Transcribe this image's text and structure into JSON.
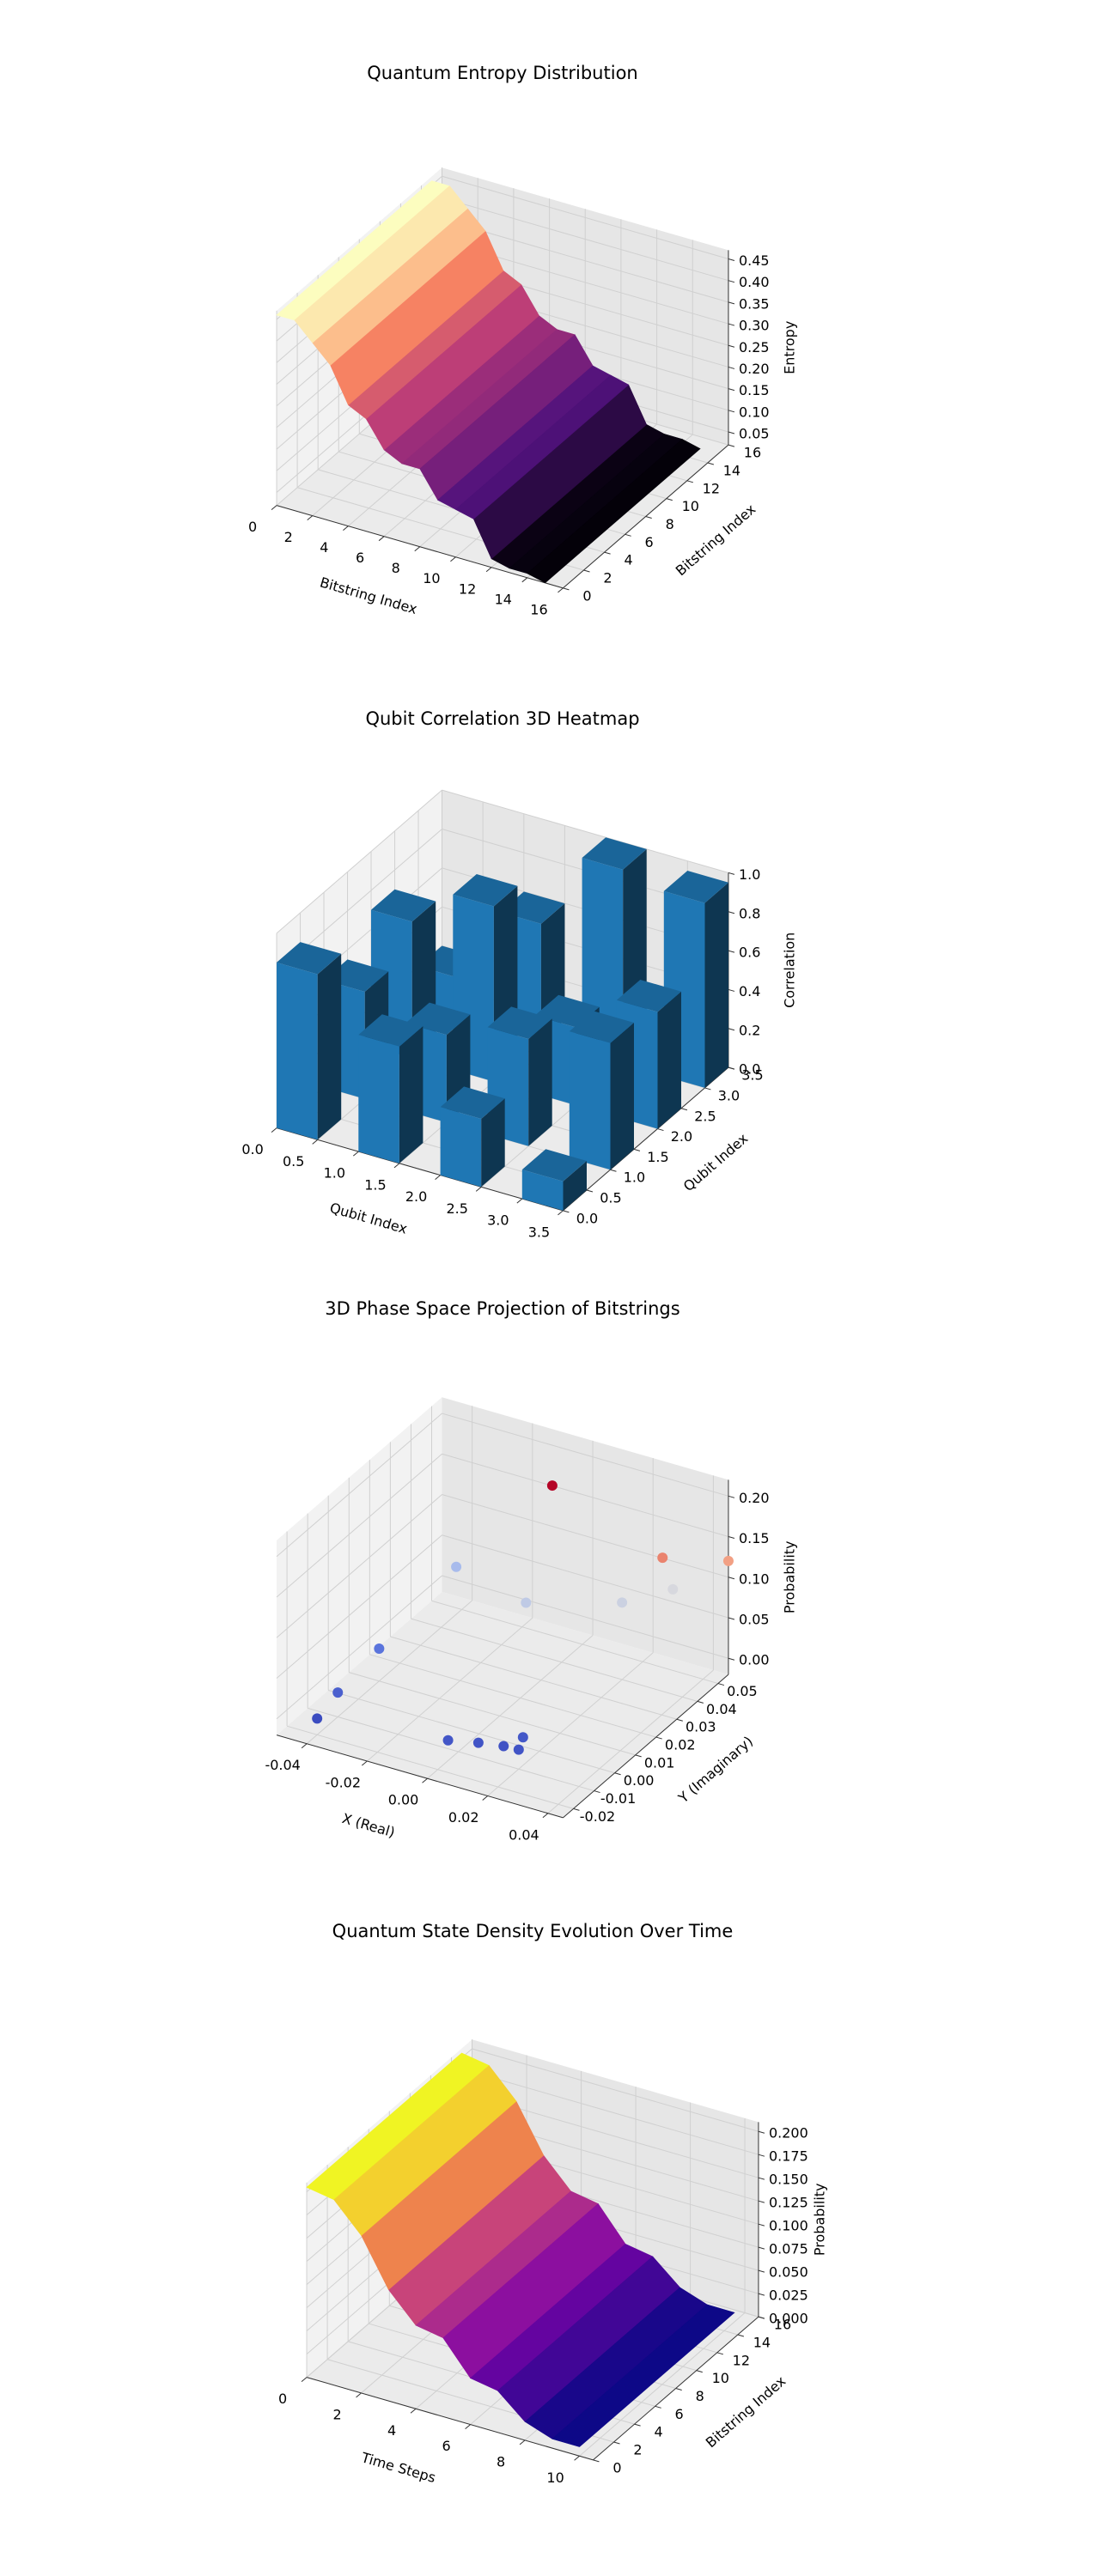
{
  "chart_data": [
    {
      "type": "surface",
      "title": "Quantum Entropy Distribution",
      "xlabel": "Bitstring Index",
      "ylabel": "Bitstring Index",
      "zlabel": "Entropy",
      "colormap": "magma",
      "x": [
        0,
        1,
        2,
        3,
        4,
        5,
        6,
        7,
        8,
        9,
        10,
        11,
        12,
        13,
        14,
        15
      ],
      "y": [
        0,
        15
      ],
      "values": [
        [
          0.46,
          0.46,
          0.42,
          0.38,
          0.3,
          0.28,
          0.22,
          0.2,
          0.2,
          0.14,
          0.13,
          0.12,
          0.04,
          0.03,
          0.03,
          0.02
        ],
        [
          0.46,
          0.46,
          0.42,
          0.38,
          0.3,
          0.28,
          0.22,
          0.2,
          0.2,
          0.14,
          0.13,
          0.12,
          0.04,
          0.03,
          0.03,
          0.02
        ]
      ],
      "xlim": [
        0,
        16
      ],
      "ylim": [
        0,
        16
      ],
      "zlim": [
        0.02,
        0.47
      ],
      "xticks": [
        0,
        2,
        4,
        6,
        8,
        10,
        12,
        14,
        16
      ],
      "yticks": [
        0,
        2,
        4,
        6,
        8,
        10,
        12,
        14,
        16
      ],
      "zticks": [
        0.05,
        {
          "value": 0.1,
          "label": "0.10"
        },
        0.15,
        {
          "value": 0.2,
          "label": "0.20"
        },
        0.25,
        {
          "value": 0.3,
          "label": "0.30"
        },
        0.35,
        {
          "value": 0.4,
          "label": "0.40"
        },
        0.45
      ]
    },
    {
      "type": "bar3d",
      "title": "Qubit Correlation 3D Heatmap",
      "xlabel": "Qubit Index",
      "ylabel": "Qubit Index",
      "zlabel": "Correlation",
      "color": "#1f77b4",
      "x": [
        0,
        1,
        2,
        3
      ],
      "y": [
        0,
        1,
        2,
        3
      ],
      "values": [
        [
          0.85,
          0.55,
          0.7,
          0.2
        ],
        [
          0.6,
          0.45,
          0.9,
          0.6
        ],
        [
          0.35,
          0.55,
          0.4,
          1.0
        ],
        [
          0.15,
          0.65,
          0.6,
          0.95
        ]
      ],
      "xlim": [
        0,
        3.5
      ],
      "ylim": [
        0,
        3.5
      ],
      "zlim": [
        0,
        1
      ],
      "xticks": [
        {
          "value": 0,
          "label": "0.0"
        },
        0.5,
        {
          "value": 1,
          "label": "1.0"
        },
        1.5,
        {
          "value": 2,
          "label": "2.0"
        },
        2.5,
        {
          "value": 3,
          "label": "3.0"
        },
        3.5
      ],
      "yticks": [
        {
          "value": 0,
          "label": "0.0"
        },
        0.5,
        {
          "value": 1,
          "label": "1.0"
        },
        1.5,
        {
          "value": 2,
          "label": "2.0"
        },
        2.5,
        {
          "value": 3,
          "label": "3.0"
        },
        3.5
      ],
      "zticks": [
        {
          "value": 0,
          "label": "0.0"
        },
        0.2,
        0.4,
        0.6,
        0.8,
        {
          "value": 1,
          "label": "1.0"
        }
      ]
    },
    {
      "type": "scatter3d",
      "title": "3D Phase Space Projection of Bitstrings",
      "xlabel": "X (Real)",
      "ylabel": "Y (Imaginary)",
      "zlabel": "Probability",
      "colormap": "coolwarm",
      "x": [
        -0.01,
        0.03,
        0.045,
        -0.035,
        -0.005,
        0.02,
        0.03,
        -0.04,
        -0.04,
        -0.04,
        0.0,
        0.008,
        0.015,
        0.018,
        0.02
      ],
      "y": [
        0.05,
        0.045,
        0.055,
        0.04,
        0.03,
        0.04,
        0.05,
        0.01,
        -0.01,
        -0.02,
        -0.015,
        -0.012,
        -0.01,
        -0.005,
        -0.01
      ],
      "values": [
        0.165,
        0.13,
        0.12,
        0.06,
        0.07,
        0.075,
        0.08,
        0.02,
        0.01,
        0.0,
        0.005,
        0.004,
        0.003,
        0.006,
        0.004
      ],
      "xlim": [
        -0.05,
        0.045
      ],
      "ylim": [
        -0.025,
        0.055
      ],
      "zlim": [
        -0.02,
        0.22
      ],
      "xticks": [
        -0.04,
        -0.02,
        {
          "value": 0,
          "label": "0.00"
        },
        0.02,
        0.04
      ],
      "yticks": [
        -0.02,
        -0.01,
        {
          "value": 0,
          "label": "0.00"
        },
        0.01,
        0.02,
        0.03,
        0.04,
        0.05
      ],
      "zticks": [
        {
          "value": 0,
          "label": "0.00"
        },
        0.05,
        {
          "value": 0.1,
          "label": "0.10"
        },
        0.15,
        {
          "value": 0.2,
          "label": "0.20"
        }
      ]
    },
    {
      "type": "surface",
      "title": "Quantum State Density Evolution Over Time",
      "xlabel": "Time Steps",
      "ylabel": "Bitstring Index",
      "zlabel": "Probability",
      "colormap": "plasma",
      "x": [
        0,
        1,
        2,
        3,
        4,
        5,
        6,
        7,
        8,
        9,
        10
      ],
      "y": [
        0,
        15
      ],
      "values": [
        [
          0.205,
          0.2,
          0.17,
          0.12,
          0.09,
          0.085,
          0.05,
          0.045,
          0.02,
          0.01,
          0.01
        ],
        [
          0.205,
          0.2,
          0.17,
          0.12,
          0.09,
          0.085,
          0.05,
          0.045,
          0.02,
          0.01,
          0.01
        ]
      ],
      "xlim": [
        0,
        10.5
      ],
      "ylim": [
        0,
        16
      ],
      "zlim": [
        0,
        0.21
      ],
      "xticks": [
        0,
        2,
        4,
        6,
        8,
        10
      ],
      "yticks": [
        0,
        2,
        4,
        6,
        8,
        10,
        12,
        14,
        16
      ],
      "zticks": [
        {
          "value": 0,
          "label": "0.000"
        },
        0.025,
        {
          "value": 0.05,
          "label": "0.050"
        },
        0.075,
        {
          "value": 0.1,
          "label": "0.100"
        },
        0.125,
        {
          "value": 0.15,
          "label": "0.150"
        },
        0.175,
        {
          "value": 0.2,
          "label": "0.200"
        }
      ]
    }
  ]
}
